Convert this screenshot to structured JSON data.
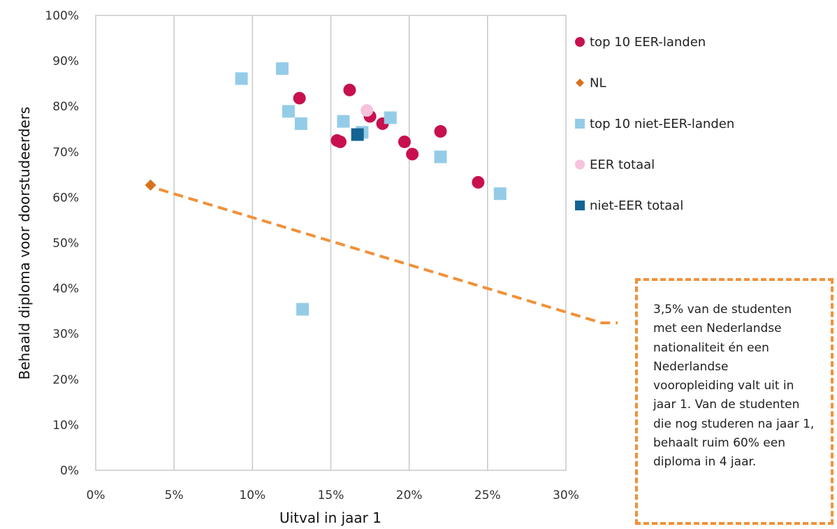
{
  "chart_data": {
    "type": "scatter",
    "title": "",
    "xlabel": "Uitval in jaar 1",
    "ylabel": "Behaald diploma voor doorstudeerders",
    "xlim": [
      0,
      30
    ],
    "ylim": [
      0,
      100
    ],
    "x_ticks": [
      "0%",
      "5%",
      "10%",
      "15%",
      "20%",
      "25%",
      "30%"
    ],
    "y_ticks": [
      "0%",
      "10%",
      "20%",
      "30%",
      "40%",
      "50%",
      "60%",
      "70%",
      "80%",
      "90%",
      "100%"
    ],
    "grid": "vertical",
    "legend_position": "right",
    "series": [
      {
        "name": "top 10 EER-landen",
        "marker": "circle",
        "color": "#c8104f",
        "points": [
          [
            13.0,
            81.8
          ],
          [
            16.2,
            83.6
          ],
          [
            15.4,
            72.5
          ],
          [
            15.6,
            72.2
          ],
          [
            17.5,
            77.8
          ],
          [
            18.3,
            76.2
          ],
          [
            19.7,
            72.2
          ],
          [
            20.2,
            69.5
          ],
          [
            22.0,
            74.5
          ],
          [
            24.4,
            63.3
          ]
        ]
      },
      {
        "name": "NL",
        "marker": "diamond",
        "color": "#d9711c",
        "points": [
          [
            3.5,
            62.7
          ]
        ]
      },
      {
        "name": "top 10 niet-EER-landen",
        "marker": "square",
        "color": "#94cce8",
        "points": [
          [
            9.3,
            86.1
          ],
          [
            11.9,
            88.3
          ],
          [
            12.3,
            78.9
          ],
          [
            13.1,
            76.2
          ],
          [
            15.8,
            76.7
          ],
          [
            17.0,
            74.3
          ],
          [
            18.8,
            77.5
          ],
          [
            22.0,
            68.9
          ],
          [
            25.8,
            60.8
          ],
          [
            13.2,
            35.4
          ]
        ]
      },
      {
        "name": "EER totaal",
        "marker": "circle",
        "color": "#f6c2dc",
        "points": [
          [
            17.3,
            79.1
          ]
        ]
      },
      {
        "name": "niet-EER totaal",
        "marker": "square",
        "color": "#146393",
        "points": [
          [
            16.7,
            73.8
          ]
        ]
      }
    ],
    "annotation": {
      "text": "3,5% van de studenten met een Nederlandse nationaliteit én een Nederlandse vooropleiding valt uit in jaar 1. Van de studenten die nog studeren na jaar 1, behaalt ruim 60% een diploma in 4 jaar.",
      "lines": [
        "3,5% van de studenten",
        "met een Nederlandse",
        "nationaliteit én een",
        "Nederlandse",
        "vooropleiding valt uit in",
        "jaar 1. Van de studenten",
        "die nog studeren na jaar 1,",
        "behaalt ruim 60% een",
        "diploma in 4 jaar."
      ],
      "points_to": [
        3.5,
        62.7
      ],
      "connector_color": "#f0913a"
    }
  }
}
